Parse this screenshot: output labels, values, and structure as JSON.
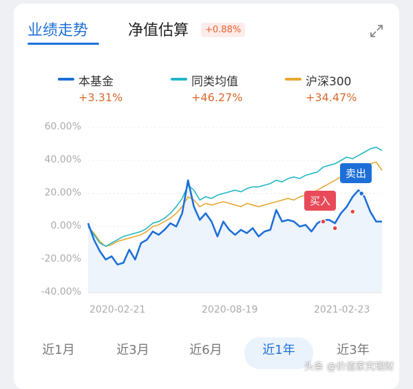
{
  "tabs": [
    {
      "label": "业绩走势",
      "active": true
    },
    {
      "label": "净值估算",
      "active": false
    }
  ],
  "estimate_badge": "+0.88%",
  "legend": [
    {
      "name": "本基金",
      "value": "+3.31%",
      "color": "#1d6fd8"
    },
    {
      "name": "同类均值",
      "value": "+46.27%",
      "color": "#21b6c6"
    },
    {
      "name": "沪深300",
      "value": "+34.47%",
      "color": "#e8a72e"
    }
  ],
  "periods": [
    {
      "label": "近1月",
      "active": false
    },
    {
      "label": "近3月",
      "active": false
    },
    {
      "label": "近6月",
      "active": false
    },
    {
      "label": "近1年",
      "active": true
    },
    {
      "label": "近3年",
      "active": false
    }
  ],
  "markers": {
    "buy": "买入",
    "sell": "卖出"
  },
  "watermark": "头条 @价值家究理财",
  "chart_data": {
    "type": "line",
    "y_ticks": [
      "60.00%",
      "40.00%",
      "20.00%",
      "0.00%",
      "-20.00%",
      "-40.00%"
    ],
    "ylim": [
      -40,
      60
    ],
    "x_ticks": [
      "2020-02-21",
      "2020-08-19",
      "2021-02-23"
    ],
    "x": [
      0,
      2,
      4,
      6,
      8,
      10,
      12,
      14,
      16,
      18,
      20,
      22,
      24,
      26,
      28,
      30,
      32,
      34,
      36,
      38,
      40,
      42,
      44,
      46,
      48,
      50,
      52,
      54,
      56,
      58,
      60,
      62,
      64,
      66,
      68,
      70,
      72,
      74,
      76,
      78,
      80,
      82,
      84,
      86,
      88,
      90,
      92,
      94,
      96,
      98,
      100
    ],
    "series": [
      {
        "name": "本基金",
        "color": "#1d6fd8",
        "values": [
          2,
          -8,
          -15,
          -20,
          -18,
          -23,
          -22,
          -14,
          -20,
          -10,
          -8,
          -3,
          -5,
          -2,
          2,
          0,
          8,
          28,
          12,
          4,
          8,
          3,
          -6,
          3,
          -2,
          -5,
          -2,
          -4,
          -1,
          -6,
          -3,
          -2,
          10,
          3,
          4,
          3,
          0,
          1,
          -3,
          2,
          4,
          4,
          2,
          8,
          12,
          18,
          22,
          18,
          9,
          3,
          3
        ]
      },
      {
        "name": "同类均值",
        "color": "#21b6c6",
        "values": [
          0,
          -5,
          -10,
          -12,
          -10,
          -8,
          -6,
          -5,
          -4,
          -3,
          -1,
          2,
          3,
          5,
          8,
          12,
          17,
          25,
          22,
          16,
          18,
          17,
          19,
          20,
          21,
          22,
          21,
          23,
          24,
          24,
          25,
          26,
          28,
          27,
          29,
          30,
          29,
          31,
          32,
          33,
          36,
          37,
          38,
          40,
          42,
          41,
          43,
          45,
          47,
          48,
          46
        ]
      },
      {
        "name": "沪深300",
        "color": "#e8a72e",
        "values": [
          0,
          -4,
          -9,
          -12,
          -11,
          -9,
          -8,
          -7,
          -6,
          -5,
          -3,
          0,
          1,
          3,
          5,
          8,
          12,
          18,
          16,
          12,
          14,
          13,
          14,
          15,
          14,
          13,
          12,
          14,
          13,
          12,
          13,
          14,
          15,
          16,
          17,
          16,
          18,
          19,
          20,
          22,
          24,
          26,
          28,
          30,
          32,
          34,
          33,
          36,
          38,
          39,
          34
        ]
      }
    ],
    "trade_points": [
      {
        "x": 80,
        "y": 3,
        "color": "#e84545"
      },
      {
        "x": 84,
        "y": -1,
        "color": "#e84545"
      },
      {
        "x": 90,
        "y": 9,
        "color": "#e84545"
      },
      {
        "x": 93,
        "y": 20,
        "color": "#1d6fd8"
      }
    ]
  }
}
